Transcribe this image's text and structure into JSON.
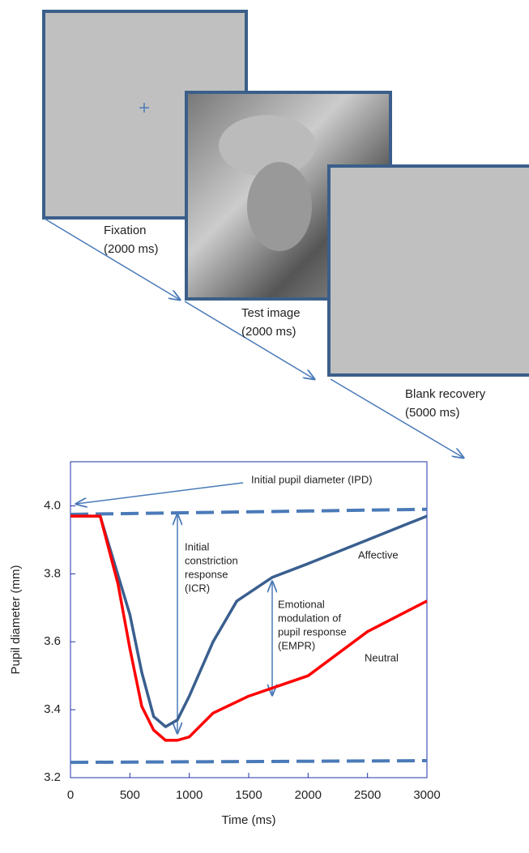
{
  "diagram": {
    "steps": [
      {
        "label": "Fixation",
        "duration": "(2000 ms)"
      },
      {
        "label": "Test image",
        "duration": "(2000 ms)"
      },
      {
        "label": "Blank recovery",
        "duration": "(5000 ms)"
      }
    ]
  },
  "chart_data": {
    "type": "line",
    "x_label": "Time (ms)",
    "y_label": "Pupil diameter (mm)",
    "xlim": [
      0,
      3000
    ],
    "xticks": [
      0,
      500,
      1000,
      1500,
      2000,
      2500,
      3000
    ],
    "ylim": [
      3.2,
      4.13
    ],
    "yticks": [
      {
        "value": 3.2,
        "label": "3.2"
      },
      {
        "value": 3.4,
        "label": "3.4"
      },
      {
        "value": 3.6,
        "label": "3.6"
      },
      {
        "value": 3.8,
        "label": "3.8"
      },
      {
        "value": 4,
        "label": "4.0"
      }
    ],
    "series": [
      {
        "name": "Affective",
        "color": "#3a5f8f",
        "x": [
          0,
          250,
          500,
          600,
          700,
          800,
          900,
          1000,
          1200,
          1400,
          1700,
          2000,
          2500,
          3000
        ],
        "values": [
          3.97,
          3.97,
          3.68,
          3.51,
          3.38,
          3.35,
          3.37,
          3.44,
          3.6,
          3.72,
          3.79,
          3.83,
          3.9,
          3.97
        ]
      },
      {
        "name": "Neutral",
        "color": "#ff0000",
        "x": [
          0,
          250,
          400,
          500,
          600,
          700,
          800,
          900,
          1000,
          1200,
          1500,
          2000,
          2500,
          3000
        ],
        "values": [
          3.97,
          3.97,
          3.77,
          3.58,
          3.41,
          3.34,
          3.31,
          3.31,
          3.32,
          3.39,
          3.44,
          3.5,
          3.63,
          3.72
        ]
      }
    ],
    "reference_lines": [
      {
        "x": [
          0,
          3000
        ],
        "y": [
          3.975,
          3.99
        ],
        "color": "#4a7ab8"
      },
      {
        "x": [
          0,
          3000
        ],
        "y": [
          3.245,
          3.25
        ],
        "color": "#4a7ab8"
      }
    ],
    "annotations": {
      "ipd": "Initial pupil diameter (IPD)",
      "icr": [
        "Initial",
        "constriction",
        "response",
        "(ICR)"
      ],
      "empr": [
        "Emotional",
        "modulation of",
        "pupil response",
        "(EMPR)"
      ]
    }
  }
}
